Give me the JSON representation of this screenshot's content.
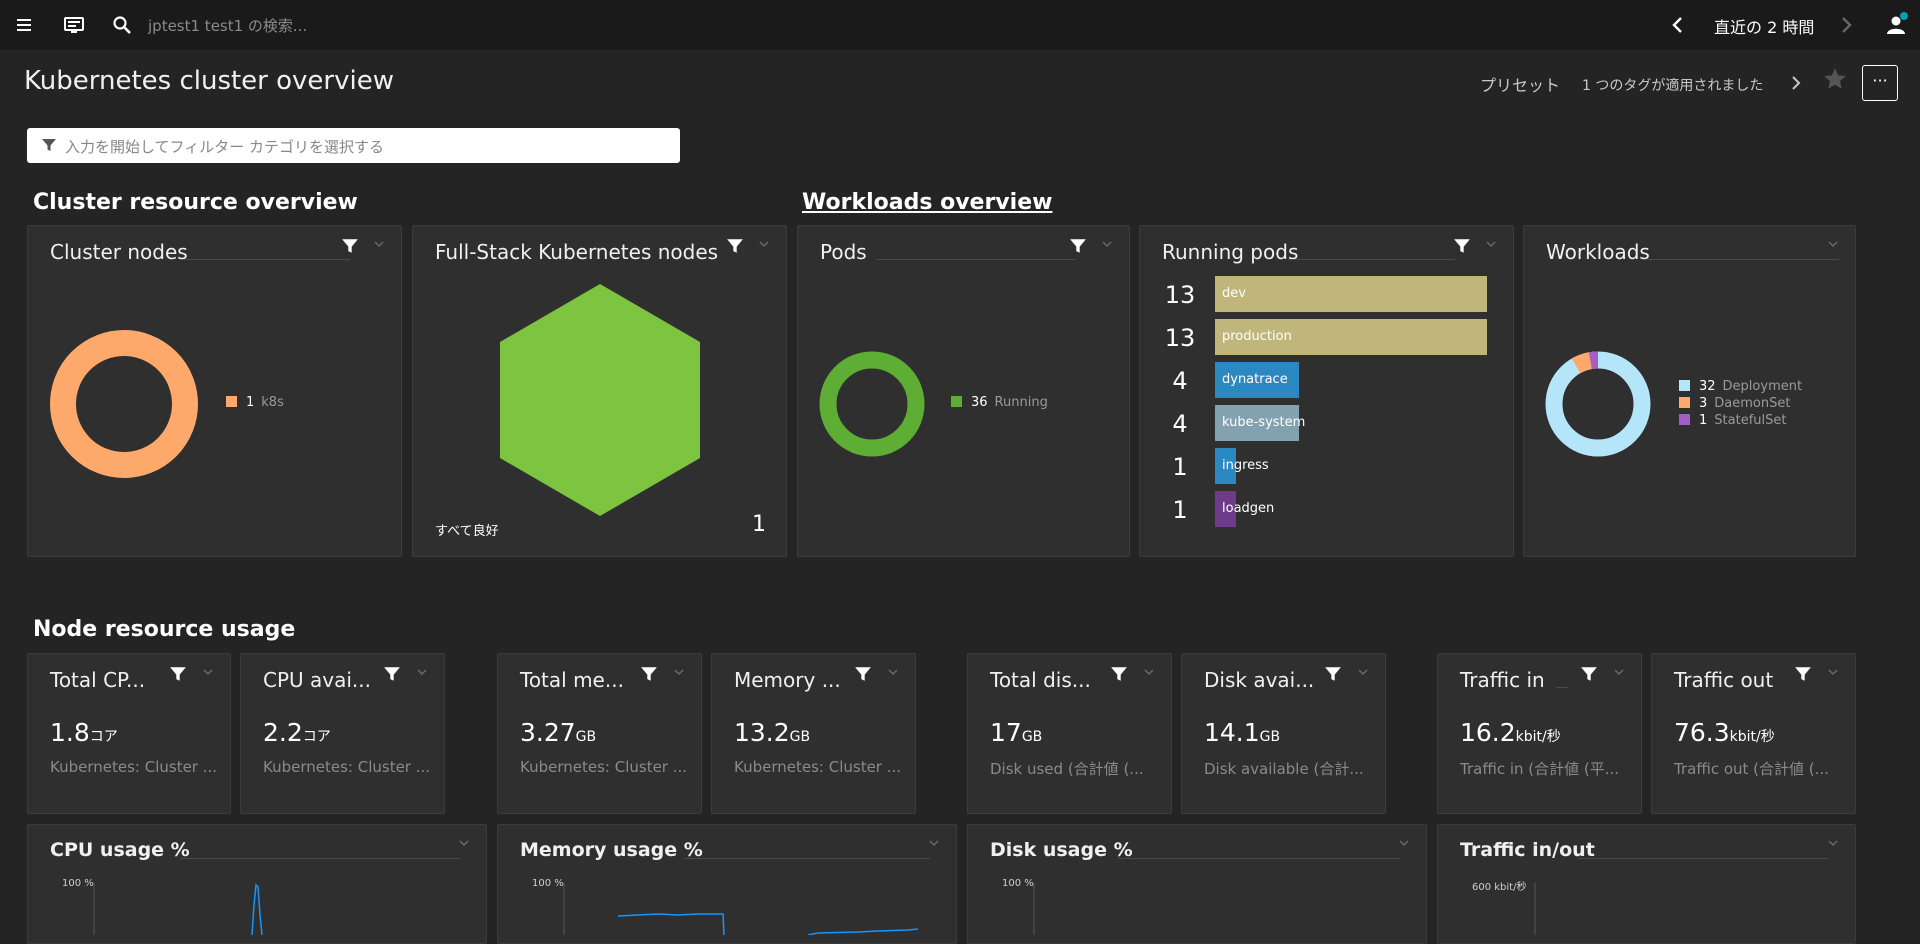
{
  "topbar": {
    "search_placeholder": "jptest1 test1 の検索...",
    "timeframe": "直近の 2 時間"
  },
  "header": {
    "title": "Kubernetes cluster overview",
    "preset": "プリセット",
    "tags": "1 つのタグが適用されました",
    "more": "···"
  },
  "filter": {
    "placeholder": "入力を開始してフィルター カテゴリを選択する"
  },
  "sections": {
    "cluster": "Cluster resource overview",
    "workloads": "Workloads overview",
    "node_usage": "Node resource usage"
  },
  "tiles": {
    "cluster_nodes": {
      "title": "Cluster nodes",
      "legend": [
        {
          "count": "1",
          "label": "k8s",
          "color": "#fda96c"
        }
      ]
    },
    "fullstack": {
      "title": "Full-Stack Kubernetes nodes",
      "status": "すべて良好",
      "count": "1",
      "color": "#7dc540"
    },
    "pods": {
      "title": "Pods",
      "legend": [
        {
          "count": "36",
          "label": "Running",
          "color": "#5ead35"
        }
      ]
    },
    "running_pods": {
      "title": "Running pods",
      "bars": [
        {
          "value": "13",
          "label": "dev",
          "color": "#c0b57b"
        },
        {
          "value": "13",
          "label": "production",
          "color": "#c0b57b"
        },
        {
          "value": "4",
          "label": "dynatrace",
          "color": "#2c88c1"
        },
        {
          "value": "4",
          "label": "kube-system",
          "color": "#83a2b0"
        },
        {
          "value": "1",
          "label": "ingress",
          "color": "#2c88c1"
        },
        {
          "value": "1",
          "label": "loadgen",
          "color": "#6d3b8a"
        }
      ]
    },
    "workloads": {
      "title": "Workloads",
      "legend": [
        {
          "count": "32",
          "label": "Deployment",
          "color": "#b4e5f9"
        },
        {
          "count": "3",
          "label": "DaemonSet",
          "color": "#fda96c"
        },
        {
          "count": "1",
          "label": "StatefulSet",
          "color": "#a35fc3"
        }
      ]
    }
  },
  "metrics": [
    {
      "title": "Total CP...",
      "value": "1.8",
      "unit": "コア",
      "sub": "Kubernetes: Cluster ..."
    },
    {
      "title": "CPU avai...",
      "value": "2.2",
      "unit": "コア",
      "sub": "Kubernetes: Cluster ..."
    },
    {
      "title": "Total me...",
      "value": "3.27",
      "unit": "GB",
      "sub": "Kubernetes: Cluster ..."
    },
    {
      "title": "Memory ...",
      "value": "13.2",
      "unit": "GB",
      "sub": "Kubernetes: Cluster ..."
    },
    {
      "title": "Total dis...",
      "value": "17",
      "unit": "GB",
      "sub": "Disk used (合計値 (..."
    },
    {
      "title": "Disk avai...",
      "value": "14.1",
      "unit": "GB",
      "sub": "Disk available (合計..."
    },
    {
      "title": "Traffic in",
      "value": "16.2",
      "unit": "kbit/秒",
      "sub": "Traffic in (合計値 (平..."
    },
    {
      "title": "Traffic out",
      "value": "76.3",
      "unit": "kbit/秒",
      "sub": "Traffic out (合計値 (..."
    }
  ],
  "charts": [
    {
      "title": "CPU usage %",
      "ymax": "100 %"
    },
    {
      "title": "Memory usage %",
      "ymax": "100 %"
    },
    {
      "title": "Disk usage %",
      "ymax": "100 %"
    },
    {
      "title": "Traffic in/out",
      "ymax": "600 kbit/秒"
    }
  ]
}
